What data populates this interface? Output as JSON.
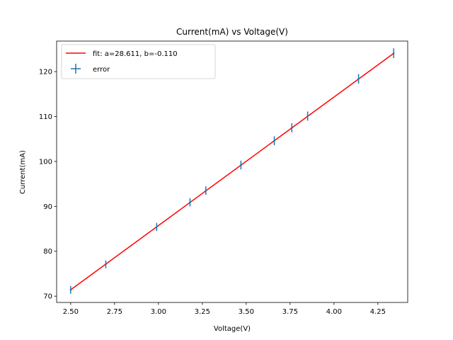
{
  "chart_data": {
    "type": "scatter",
    "title": "Current(mA) vs Voltage(V)",
    "xlabel": "Voltage(V)",
    "ylabel": "Current(mA)",
    "xlim": [
      2.42,
      4.42
    ],
    "ylim": [
      68.6,
      126.8
    ],
    "xticks": [
      2.5,
      2.75,
      3.0,
      3.25,
      3.5,
      3.75,
      4.0,
      4.25
    ],
    "xtick_labels": [
      "2.50",
      "2.75",
      "3.00",
      "3.25",
      "3.50",
      "3.75",
      "4.00",
      "4.25"
    ],
    "yticks": [
      70,
      80,
      90,
      100,
      110,
      120
    ],
    "ytick_labels": [
      "70",
      "80",
      "90",
      "100",
      "110",
      "120"
    ],
    "legend_position": "top-left",
    "fit": {
      "label": "fit: a=28.611, b=-0.110",
      "a": 28.611,
      "b": -0.11,
      "x_range": [
        2.5,
        4.34
      ],
      "color": "#ff0000"
    },
    "series": [
      {
        "name": "error",
        "color": "#1f77b4",
        "points": [
          {
            "x": 2.5,
            "y": 71.4,
            "yerr": 0.36
          },
          {
            "x": 2.7,
            "y": 77.1,
            "yerr": 0.39
          },
          {
            "x": 2.99,
            "y": 85.4,
            "yerr": 0.43
          },
          {
            "x": 3.18,
            "y": 90.9,
            "yerr": 0.45
          },
          {
            "x": 3.27,
            "y": 93.5,
            "yerr": 0.47
          },
          {
            "x": 3.47,
            "y": 99.2,
            "yerr": 0.5
          },
          {
            "x": 3.66,
            "y": 104.6,
            "yerr": 0.52
          },
          {
            "x": 3.76,
            "y": 107.5,
            "yerr": 0.54
          },
          {
            "x": 3.85,
            "y": 110.1,
            "yerr": 0.55
          },
          {
            "x": 4.14,
            "y": 118.4,
            "yerr": 0.59
          },
          {
            "x": 4.34,
            "y": 124.1,
            "yerr": 0.62
          }
        ]
      }
    ]
  }
}
